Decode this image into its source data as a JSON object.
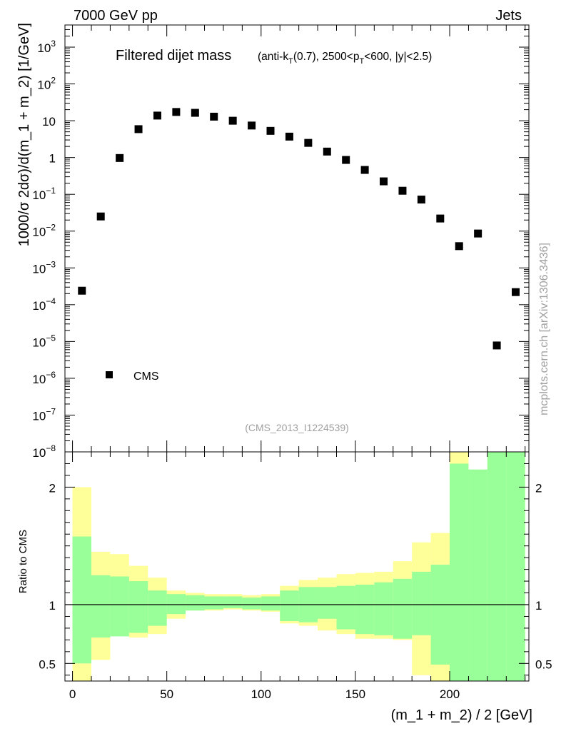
{
  "header": {
    "left": "7000 GeV pp",
    "right": "Jets"
  },
  "side_label": "mcplots.cern.ch [arXiv:1306.3436]",
  "plot_title": {
    "main": "Filtered dijet mass",
    "sub_prefix": "(anti-k",
    "sub_sub1": "T",
    "sub_mid": "(0.7), 2500<p",
    "sub_sub2": "T",
    "sub_suffix": "<600, |y|<2.5)"
  },
  "analysis_id": "(CMS_2013_I1224539)",
  "legend": {
    "label": "CMS"
  },
  "colors": {
    "green_band": "#99ff99",
    "yellow_band": "#ffff99",
    "marker": "#000000"
  },
  "chart_data": [
    {
      "type": "scatter",
      "title": "Filtered dijet mass",
      "xlabel": "(m_1 + m_2) / 2 [GeV]",
      "ylabel": "1000/σ 2dσ)/d(m_1 + m_2) [1/GeV]",
      "yscale": "log",
      "xlim": [
        -4,
        242
      ],
      "ylim": [
        1e-08,
        4000
      ],
      "y_tick_labels": [
        "10^-8",
        "10^-7",
        "10^-6",
        "10^-5",
        "10^-4",
        "10^-3",
        "10^-2",
        "10^-1",
        "1",
        "10",
        "10^2",
        "10^3"
      ],
      "series": [
        {
          "name": "CMS",
          "x": [
            5,
            15,
            25,
            35,
            45,
            55,
            65,
            75,
            85,
            95,
            105,
            115,
            125,
            135,
            145,
            155,
            165,
            175,
            185,
            195,
            205,
            215,
            225,
            235
          ],
          "values": [
            0.00024,
            0.025,
            0.97,
            5.9,
            13.8,
            17.3,
            16.4,
            12.9,
            10.0,
            7.4,
            5.3,
            3.7,
            2.5,
            1.45,
            0.86,
            0.46,
            0.225,
            0.125,
            0.072,
            0.022,
            0.0039,
            0.0086,
            7.8e-06,
            0.00022
          ]
        }
      ]
    },
    {
      "type": "area",
      "title": "",
      "xlabel": "(m_1 + m_2) / 2 [GeV]",
      "ylabel": "Ratio to CMS",
      "xlim": [
        -4,
        242
      ],
      "ylim": [
        0.35,
        2.3
      ],
      "y_ticks": [
        0.5,
        1,
        2
      ],
      "y_tick_labels": [
        "0.5",
        "1",
        "2"
      ],
      "x_ticks": [
        0,
        50,
        100,
        150,
        200
      ],
      "x_tick_labels": [
        "0",
        "50",
        "100",
        "150",
        "200"
      ],
      "bin_edges": [
        0,
        10,
        20,
        30,
        40,
        50,
        60,
        70,
        80,
        90,
        100,
        110,
        120,
        130,
        140,
        150,
        160,
        170,
        180,
        190,
        200,
        210,
        220,
        230,
        240
      ],
      "series": [
        {
          "name": "stat",
          "low": [
            0.5,
            0.72,
            0.73,
            0.76,
            0.82,
            0.92,
            0.95,
            0.96,
            0.97,
            0.96,
            0.95,
            0.86,
            0.85,
            0.88,
            0.79,
            0.75,
            0.74,
            0.71,
            0.74,
            0.49,
            0.3,
            0.3,
            0.3,
            0.3
          ],
          "high": [
            1.58,
            1.25,
            1.24,
            1.2,
            1.12,
            1.09,
            1.08,
            1.07,
            1.07,
            1.06,
            1.07,
            1.12,
            1.15,
            1.15,
            1.16,
            1.17,
            1.19,
            1.22,
            1.28,
            1.34,
            2.2,
            2.15,
            2.4,
            2.4
          ]
        },
        {
          "name": "total",
          "low": [
            0.3,
            0.53,
            0.8,
            0.72,
            0.75,
            0.88,
            0.95,
            0.95,
            0.96,
            0.95,
            0.94,
            0.84,
            0.82,
            0.78,
            0.75,
            0.71,
            0.71,
            0.7,
            0.4,
            0.3,
            0.3,
            0.3,
            0.3,
            0.3
          ],
          "high": [
            2.0,
            1.45,
            1.43,
            1.33,
            1.23,
            1.12,
            1.1,
            1.09,
            1.09,
            1.08,
            1.09,
            1.16,
            1.21,
            1.23,
            1.26,
            1.27,
            1.28,
            1.37,
            1.53,
            1.61,
            2.55,
            1.68,
            2.4,
            2.4
          ]
        }
      ]
    }
  ]
}
